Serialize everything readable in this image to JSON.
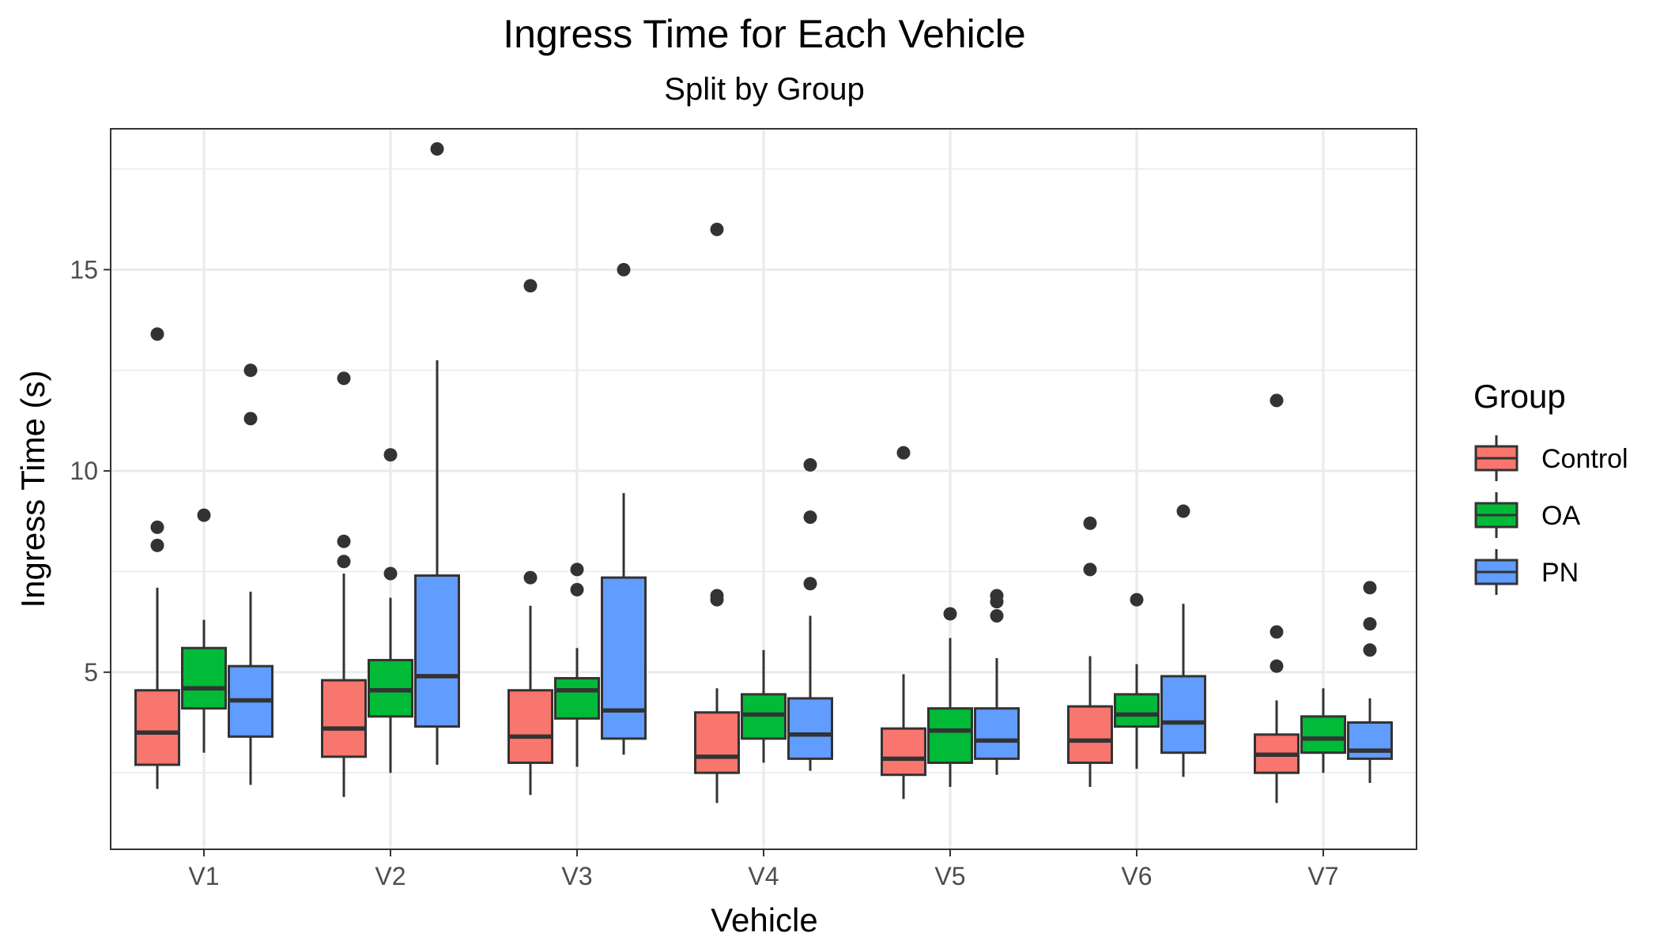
{
  "chart_data": {
    "type": "boxplot",
    "title": "Ingress Time for Each Vehicle",
    "subtitle": "Split by Group",
    "xlabel": "Vehicle",
    "ylabel": "Ingress Time (s)",
    "ylim": [
      0.6,
      18.5
    ],
    "yticks": [
      5,
      10,
      15
    ],
    "grid": true,
    "legend": {
      "title": "Group",
      "placement": "right"
    },
    "categories": [
      "V1",
      "V2",
      "V3",
      "V4",
      "V5",
      "V6",
      "V7"
    ],
    "colors": {
      "Control": "#F8766D",
      "OA": "#00BA38",
      "PN": "#619CFF"
    },
    "series": [
      {
        "name": "Control",
        "boxes": [
          {
            "whisker_low": 2.1,
            "q1": 2.7,
            "median": 3.5,
            "q3": 4.55,
            "whisker_high": 7.1,
            "outliers": [
              8.15,
              8.6,
              13.4
            ]
          },
          {
            "whisker_low": 1.9,
            "q1": 2.9,
            "median": 3.6,
            "q3": 4.8,
            "whisker_high": 7.45,
            "outliers": [
              7.75,
              8.25,
              12.3
            ]
          },
          {
            "whisker_low": 1.95,
            "q1": 2.75,
            "median": 3.4,
            "q3": 4.55,
            "whisker_high": 6.65,
            "outliers": [
              7.35,
              14.6
            ]
          },
          {
            "whisker_low": 1.75,
            "q1": 2.5,
            "median": 2.9,
            "q3": 4.0,
            "whisker_high": 4.6,
            "outliers": [
              6.8,
              6.9,
              16.0
            ]
          },
          {
            "whisker_low": 1.85,
            "q1": 2.45,
            "median": 2.85,
            "q3": 3.6,
            "whisker_high": 4.95,
            "outliers": [
              10.45
            ]
          },
          {
            "whisker_low": 2.15,
            "q1": 2.75,
            "median": 3.3,
            "q3": 4.15,
            "whisker_high": 5.4,
            "outliers": [
              7.55,
              8.7
            ]
          },
          {
            "whisker_low": 1.75,
            "q1": 2.5,
            "median": 2.95,
            "q3": 3.45,
            "whisker_high": 4.3,
            "outliers": [
              5.15,
              6.0,
              11.75
            ]
          }
        ]
      },
      {
        "name": "OA",
        "boxes": [
          {
            "whisker_low": 3.0,
            "q1": 4.1,
            "median": 4.6,
            "q3": 5.6,
            "whisker_high": 6.3,
            "outliers": [
              8.9
            ]
          },
          {
            "whisker_low": 2.5,
            "q1": 3.9,
            "median": 4.55,
            "q3": 5.3,
            "whisker_high": 6.85,
            "outliers": [
              7.45,
              10.4
            ]
          },
          {
            "whisker_low": 2.65,
            "q1": 3.85,
            "median": 4.55,
            "q3": 4.85,
            "whisker_high": 5.6,
            "outliers": [
              7.05,
              7.55
            ]
          },
          {
            "whisker_low": 2.75,
            "q1": 3.35,
            "median": 3.95,
            "q3": 4.45,
            "whisker_high": 5.55,
            "outliers": []
          },
          {
            "whisker_low": 2.15,
            "q1": 2.75,
            "median": 3.55,
            "q3": 4.1,
            "whisker_high": 5.85,
            "outliers": [
              6.45
            ]
          },
          {
            "whisker_low": 2.6,
            "q1": 3.65,
            "median": 3.95,
            "q3": 4.45,
            "whisker_high": 5.2,
            "outliers": [
              6.8
            ]
          },
          {
            "whisker_low": 2.5,
            "q1": 3.0,
            "median": 3.35,
            "q3": 3.9,
            "whisker_high": 4.6,
            "outliers": []
          }
        ]
      },
      {
        "name": "PN",
        "boxes": [
          {
            "whisker_low": 2.2,
            "q1": 3.4,
            "median": 4.3,
            "q3": 5.15,
            "whisker_high": 7.0,
            "outliers": [
              11.3,
              12.5
            ]
          },
          {
            "whisker_low": 2.7,
            "q1": 3.65,
            "median": 4.9,
            "q3": 7.4,
            "whisker_high": 12.75,
            "outliers": [
              18.0
            ]
          },
          {
            "whisker_low": 2.95,
            "q1": 3.35,
            "median": 4.05,
            "q3": 7.35,
            "whisker_high": 9.45,
            "outliers": [
              15.0
            ]
          },
          {
            "whisker_low": 2.55,
            "q1": 2.85,
            "median": 3.45,
            "q3": 4.35,
            "whisker_high": 6.4,
            "outliers": [
              7.2,
              8.85,
              10.15
            ]
          },
          {
            "whisker_low": 2.45,
            "q1": 2.85,
            "median": 3.3,
            "q3": 4.1,
            "whisker_high": 5.35,
            "outliers": [
              6.4,
              6.75,
              6.9
            ]
          },
          {
            "whisker_low": 2.4,
            "q1": 3.0,
            "median": 3.75,
            "q3": 4.9,
            "whisker_high": 6.7,
            "outliers": [
              9.0
            ]
          },
          {
            "whisker_low": 2.25,
            "q1": 2.85,
            "median": 3.05,
            "q3": 3.75,
            "whisker_high": 4.35,
            "outliers": [
              5.55,
              6.2,
              7.1
            ]
          }
        ]
      }
    ]
  }
}
